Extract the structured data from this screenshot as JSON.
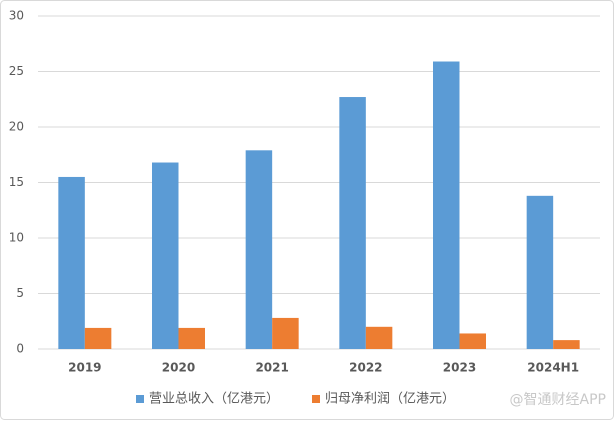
{
  "chart_data": {
    "type": "bar",
    "categories": [
      "2019",
      "2020",
      "2021",
      "2022",
      "2023",
      "2024H1"
    ],
    "series": [
      {
        "name": "营业总收入（亿港元）",
        "color": "#5b9bd5",
        "values": [
          15.5,
          16.8,
          17.9,
          22.7,
          25.9,
          13.8
        ]
      },
      {
        "name": "归母净利润（亿港元）",
        "color": "#ed7d31",
        "values": [
          1.9,
          1.9,
          2.8,
          2.0,
          1.4,
          0.8
        ]
      }
    ],
    "ylim": [
      0,
      30
    ],
    "yticks": [
      0,
      5,
      10,
      15,
      20,
      25,
      30
    ],
    "grid": true,
    "legend": "bottom",
    "watermark": "@智通财经APP"
  }
}
